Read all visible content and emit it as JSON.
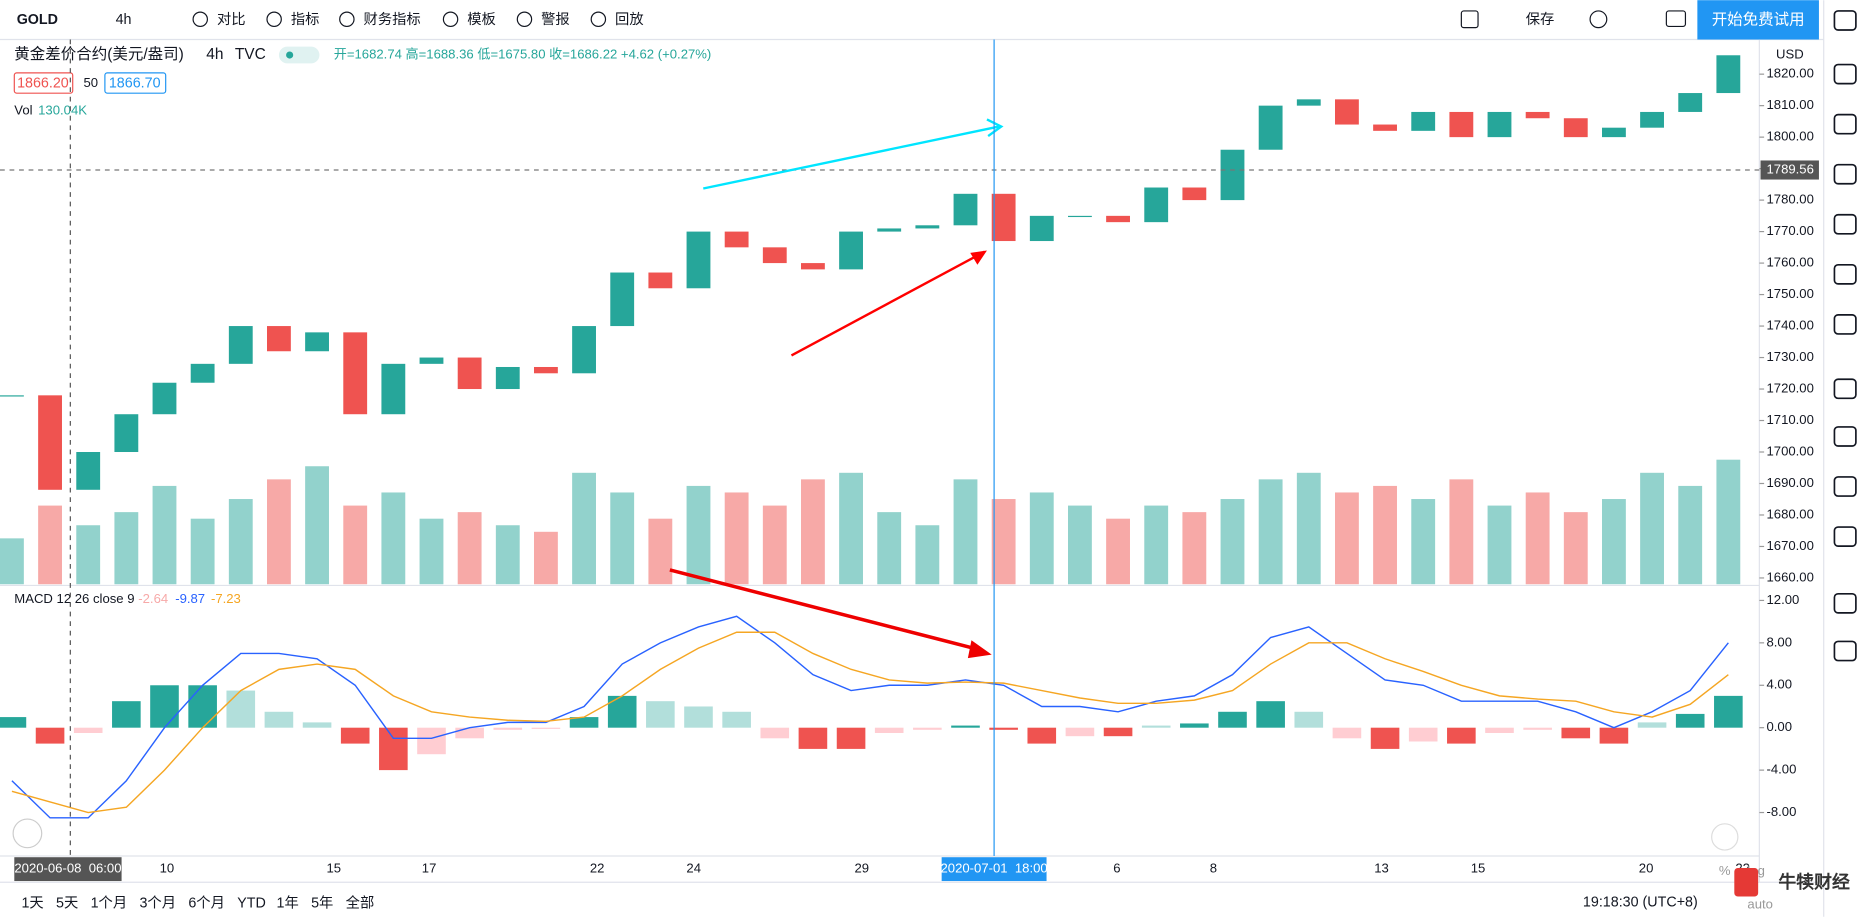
{
  "toolbar": {
    "symbol": "GOLD",
    "interval": "4h",
    "buttons": [
      "对比",
      "指标",
      "财务指标",
      "模板",
      "警报",
      "回放"
    ],
    "save": "保存",
    "trial": "开始免费试用"
  },
  "legend": {
    "name": "黄金差价合约(美元/盎司)",
    "interval": "4h",
    "source": "TVC",
    "ohlc": "开=1682.74 高=1688.36 低=1675.80 收=1686.22 +4.62 (+0.27%)",
    "bid": "1866.20",
    "spread": "50",
    "ask": "1866.70",
    "vol_name": "Vol",
    "vol_value": "130.04K",
    "macd_name": "MACD 12 26 close 9",
    "macd_hist": "-2.64",
    "macd_line": "-9.87",
    "macd_signal": "-7.23"
  },
  "chart_data": {
    "type": "candlestick",
    "currency": "USD",
    "crosshair_price": {
      "value": 1789.56,
      "label": "1789.56"
    },
    "up_color": "#26a69a",
    "down_color": "#ef5350",
    "close": [
      1718,
      1688,
      1700,
      1712,
      1722,
      1728,
      1740,
      1732,
      1738,
      1712,
      1728,
      1730,
      1720,
      1727,
      1725,
      1740,
      1757,
      1752,
      1770,
      1765,
      1760,
      1758,
      1770,
      1771,
      1772,
      1782,
      1767,
      1775,
      1775,
      1773,
      1784,
      1780,
      1796,
      1810,
      1812,
      1804,
      1802,
      1808,
      1800,
      1808,
      1806,
      1800,
      1803,
      1808,
      1814,
      1826
    ],
    "volume": [
      70,
      120,
      90,
      110,
      150,
      100,
      130,
      160,
      180,
      120,
      140,
      100,
      110,
      90,
      80,
      170,
      140,
      100,
      150,
      140,
      120,
      160,
      170,
      110,
      90,
      160,
      130,
      140,
      120,
      100,
      120,
      110,
      130,
      160,
      170,
      140,
      150,
      130,
      160,
      120,
      140,
      110,
      130,
      170,
      150,
      190
    ],
    "ylim": [
      1658,
      1831
    ],
    "yticks": [
      {
        "value": 1820,
        "label": "1820.00"
      },
      {
        "value": 1810,
        "label": "1810.00"
      },
      {
        "value": 1800,
        "label": "1800.00"
      },
      {
        "value": 1790,
        "label": "1790.00"
      },
      {
        "value": 1780,
        "label": "1780.00"
      },
      {
        "value": 1770,
        "label": "1770.00"
      },
      {
        "value": 1760,
        "label": "1760.00"
      },
      {
        "value": 1750,
        "label": "1750.00"
      },
      {
        "value": 1740,
        "label": "1740.00"
      },
      {
        "value": 1730,
        "label": "1730.00"
      },
      {
        "value": 1720,
        "label": "1720.00"
      },
      {
        "value": 1710,
        "label": "1710.00"
      },
      {
        "value": 1700,
        "label": "1700.00"
      },
      {
        "value": 1690,
        "label": "1690.00"
      },
      {
        "value": 1680,
        "label": "1680.00"
      },
      {
        "value": 1670,
        "label": "1670.00"
      },
      {
        "value": 1660,
        "label": "1660.00"
      }
    ],
    "macd": {
      "macd": [
        -5,
        -8.5,
        -8.5,
        -5,
        0,
        4,
        7,
        7,
        6.5,
        4,
        -1,
        -1,
        0,
        0.5,
        0.5,
        2,
        6,
        8,
        9.5,
        10.5,
        8,
        5,
        3.5,
        4,
        4,
        4.5,
        4,
        2,
        2,
        1.5,
        2.5,
        3,
        5,
        8.5,
        9.5,
        7,
        4.5,
        4,
        2.5,
        2.5,
        2.5,
        1.5,
        0,
        1.5,
        3.5,
        8
      ],
      "signal": [
        -6,
        -7,
        -8,
        -7.5,
        -4,
        0,
        3.5,
        5.5,
        6,
        5.5,
        3,
        1.5,
        1,
        0.7,
        0.6,
        1,
        3,
        5.5,
        7.5,
        9,
        9,
        7,
        5.5,
        4.5,
        4.2,
        4.3,
        4.2,
        3.5,
        2.8,
        2.3,
        2.3,
        2.6,
        3.5,
        6,
        8,
        8,
        6.5,
        5.3,
        4,
        3,
        2.7,
        2.5,
        1.5,
        1,
        2.2,
        5
      ],
      "histogram": [
        1,
        -1.5,
        -0.5,
        2.5,
        4,
        4,
        3.5,
        1.5,
        0.5,
        -1.5,
        -4,
        -2.5,
        -1,
        -0.2,
        -0.1,
        1,
        3,
        2.5,
        2,
        1.5,
        -1,
        -2,
        -2,
        -0.5,
        -0.2,
        0.2,
        -0.2,
        -1.5,
        -0.8,
        -0.8,
        0.2,
        0.4,
        1.5,
        2.5,
        1.5,
        -1,
        -2,
        -1.3,
        -1.5,
        -0.5,
        -0.2,
        -1,
        -1.5,
        0.5,
        1.3,
        3
      ],
      "macd_color": "#2962ff",
      "signal_color": "#f5a623",
      "ylim": [
        -12.1,
        13.3
      ],
      "yticks": [
        {
          "value": 12,
          "label": "12.00"
        },
        {
          "value": 8,
          "label": "8.00"
        },
        {
          "value": 4,
          "label": "4.00"
        },
        {
          "value": 0,
          "label": "0.00"
        },
        {
          "value": -4,
          "label": "-4.00"
        },
        {
          "value": -8,
          "label": "-8.00"
        }
      ]
    },
    "time_labels": [
      "10",
      "15",
      "17",
      "22",
      "24",
      "29",
      "6",
      "8",
      "13",
      "15",
      "20",
      "22"
    ],
    "crosshair_times": [
      "2020-06-08  06:00",
      "2020-07-01  18:00"
    ]
  },
  "bottom_bar": {
    "ranges": [
      "1天",
      "5天",
      "1个月",
      "3个月",
      "6个月",
      "YTD",
      "1年",
      "5年",
      "全部"
    ],
    "clock": "19:18:30 (UTC+8)",
    "percent": "%",
    "log": "log",
    "auto": "auto",
    "brand": "牛犊财经"
  }
}
